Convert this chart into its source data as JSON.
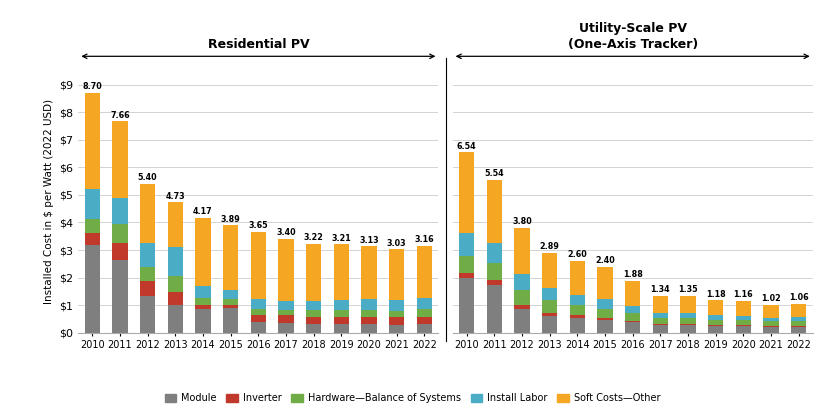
{
  "years": [
    2010,
    2011,
    2012,
    2013,
    2014,
    2015,
    2016,
    2017,
    2018,
    2019,
    2020,
    2021,
    2022
  ],
  "res_totals": [
    8.7,
    7.66,
    5.4,
    4.73,
    4.17,
    3.89,
    3.65,
    3.4,
    3.22,
    3.21,
    3.13,
    3.03,
    3.16
  ],
  "res_module": [
    3.2,
    2.65,
    1.35,
    1.0,
    0.85,
    0.9,
    0.38,
    0.36,
    0.32,
    0.32,
    0.32,
    0.29,
    0.32
  ],
  "res_inverter": [
    0.42,
    0.62,
    0.52,
    0.48,
    0.17,
    0.11,
    0.27,
    0.27,
    0.26,
    0.26,
    0.27,
    0.27,
    0.27
  ],
  "res_hardware": [
    0.5,
    0.68,
    0.52,
    0.57,
    0.23,
    0.21,
    0.21,
    0.21,
    0.25,
    0.24,
    0.24,
    0.24,
    0.26
  ],
  "res_labor": [
    1.08,
    0.93,
    0.88,
    1.05,
    0.44,
    0.34,
    0.35,
    0.33,
    0.32,
    0.36,
    0.38,
    0.38,
    0.4
  ],
  "res_soft": [
    3.5,
    2.78,
    2.13,
    1.63,
    2.48,
    2.33,
    2.44,
    2.23,
    2.07,
    2.03,
    1.92,
    1.85,
    1.91
  ],
  "util_totals": [
    6.54,
    5.54,
    3.8,
    2.89,
    2.6,
    2.4,
    1.88,
    1.34,
    1.35,
    1.18,
    1.16,
    1.02,
    1.06
  ],
  "util_module": [
    2.0,
    1.75,
    0.88,
    0.62,
    0.55,
    0.46,
    0.38,
    0.28,
    0.27,
    0.25,
    0.23,
    0.21,
    0.22
  ],
  "util_inverter": [
    0.15,
    0.15,
    0.12,
    0.1,
    0.08,
    0.07,
    0.06,
    0.05,
    0.05,
    0.04,
    0.04,
    0.04,
    0.04
  ],
  "util_hardware": [
    0.65,
    0.62,
    0.55,
    0.47,
    0.38,
    0.35,
    0.28,
    0.21,
    0.22,
    0.19,
    0.19,
    0.17,
    0.18
  ],
  "util_labor": [
    0.8,
    0.74,
    0.57,
    0.43,
    0.36,
    0.33,
    0.26,
    0.17,
    0.18,
    0.16,
    0.15,
    0.13,
    0.14
  ],
  "util_soft": [
    2.94,
    2.28,
    1.68,
    1.27,
    1.23,
    1.19,
    0.9,
    0.63,
    0.63,
    0.54,
    0.55,
    0.47,
    0.48
  ],
  "colors": {
    "module": "#7f7f7f",
    "inverter": "#c0392b",
    "hardware": "#70ad47",
    "labor": "#4bacc6",
    "soft": "#f5a623"
  },
  "legend_labels": [
    "Module",
    "Inverter",
    "Hardware—Balance of Systems",
    "Install Labor",
    "Soft Costs—Other"
  ],
  "ylabel": "Installed Cost in $ per Watt (2022 USD)",
  "res_title": "Residential PV",
  "util_title": "Utility-Scale PV\n(One-Axis Tracker)",
  "ylim": [
    0,
    9.5
  ],
  "yticks": [
    0,
    1,
    2,
    3,
    4,
    5,
    6,
    7,
    8,
    9
  ],
  "ytick_labels": [
    "$0",
    "$1",
    "$2",
    "$3",
    "$4",
    "$5",
    "$6",
    "$7",
    "$8",
    "$9"
  ],
  "background_color": "#ffffff",
  "figsize": [
    8.25,
    4.16
  ],
  "dpi": 100
}
